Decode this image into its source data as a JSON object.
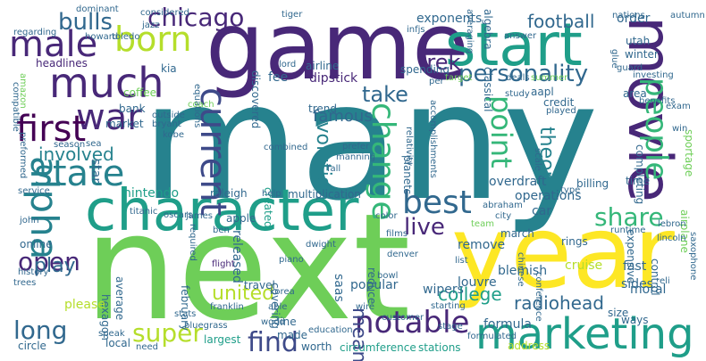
{
  "words": [
    "many",
    "next",
    "game",
    "year",
    "character",
    "start",
    "movie",
    "marketing",
    "much",
    "born",
    "male",
    "war",
    "first",
    "alpha",
    "state",
    "current",
    "change",
    "notable",
    "people",
    "best",
    "take",
    "personality",
    "point",
    "evolution",
    "chicago",
    "bulls",
    "football",
    "share",
    "find",
    "live",
    "open",
    "long",
    "play",
    "super",
    "united",
    "theory",
    "college",
    "radiohead",
    "involved",
    "famous",
    "released",
    "created",
    "nintendo",
    "mean",
    "saas",
    "trek",
    "operations",
    "overdraft",
    "car",
    "blemish",
    "march",
    "cruise",
    "fast",
    "sides",
    "formula",
    "wipers",
    "popular",
    "louvre",
    "remove",
    "moral",
    "control",
    "airplane",
    "sportage",
    "dipstick",
    "airline",
    "fee",
    "headlines",
    "kia",
    "coffee",
    "bank",
    "market",
    "preformed",
    "average",
    "hexagon",
    "february",
    "covering",
    "please",
    "online",
    "stats",
    "circle",
    "local",
    "largest",
    "franklin",
    "worth",
    "made",
    "education",
    "stations",
    "circumference",
    "address",
    "line",
    "reduce",
    "travel",
    "apple",
    "raleigh",
    "help",
    "multiplication",
    "trend",
    "planets",
    "exponents",
    "spending",
    "discovered",
    "lord",
    "classical",
    "aapl",
    "credit",
    "size",
    "ways",
    "area",
    "guard",
    "utah",
    "winter",
    "order",
    "autumn",
    "nations",
    "dominant",
    "considered",
    "regarding",
    "howard",
    "toledo",
    "tiger",
    "algebra",
    "investing",
    "benefits",
    "exam",
    "billing",
    "time",
    "completing",
    "expensive",
    "runtime",
    "type",
    "win",
    "lincoln",
    "lebron",
    "rings",
    "city",
    "abraham",
    "team",
    "color",
    "films",
    "bowl",
    "denver",
    "dwight",
    "piano",
    "korea",
    "flight",
    "able",
    "wire",
    "customer",
    "stage",
    "formulated",
    "starting",
    "speak",
    "need",
    "wood",
    "bluegrass",
    "trees",
    "history",
    "john",
    "service",
    "titanic",
    "oscars",
    "season",
    "kobe",
    "bryant",
    "outside",
    "combined",
    "relativity",
    "prefer",
    "manning",
    "fall",
    "chinese",
    "conference",
    "accomplishments",
    "equations",
    "deals",
    "summer",
    "study",
    "played",
    "answer",
    "glue",
    "target",
    "per",
    "jazz",
    "infjs",
    "coach",
    "amazon",
    "compatible",
    "required",
    "james",
    "ben",
    "list",
    "scale",
    "star",
    "saxophone",
    "eli",
    "averaging",
    "sea"
  ],
  "colors": {
    "background": "#ffffff",
    "palette": [
      "#440154",
      "#482878",
      "#3e4a89",
      "#31688e",
      "#26828e",
      "#1f9e89",
      "#35b779",
      "#6ece58",
      "#b5de2b",
      "#fde725"
    ]
  }
}
